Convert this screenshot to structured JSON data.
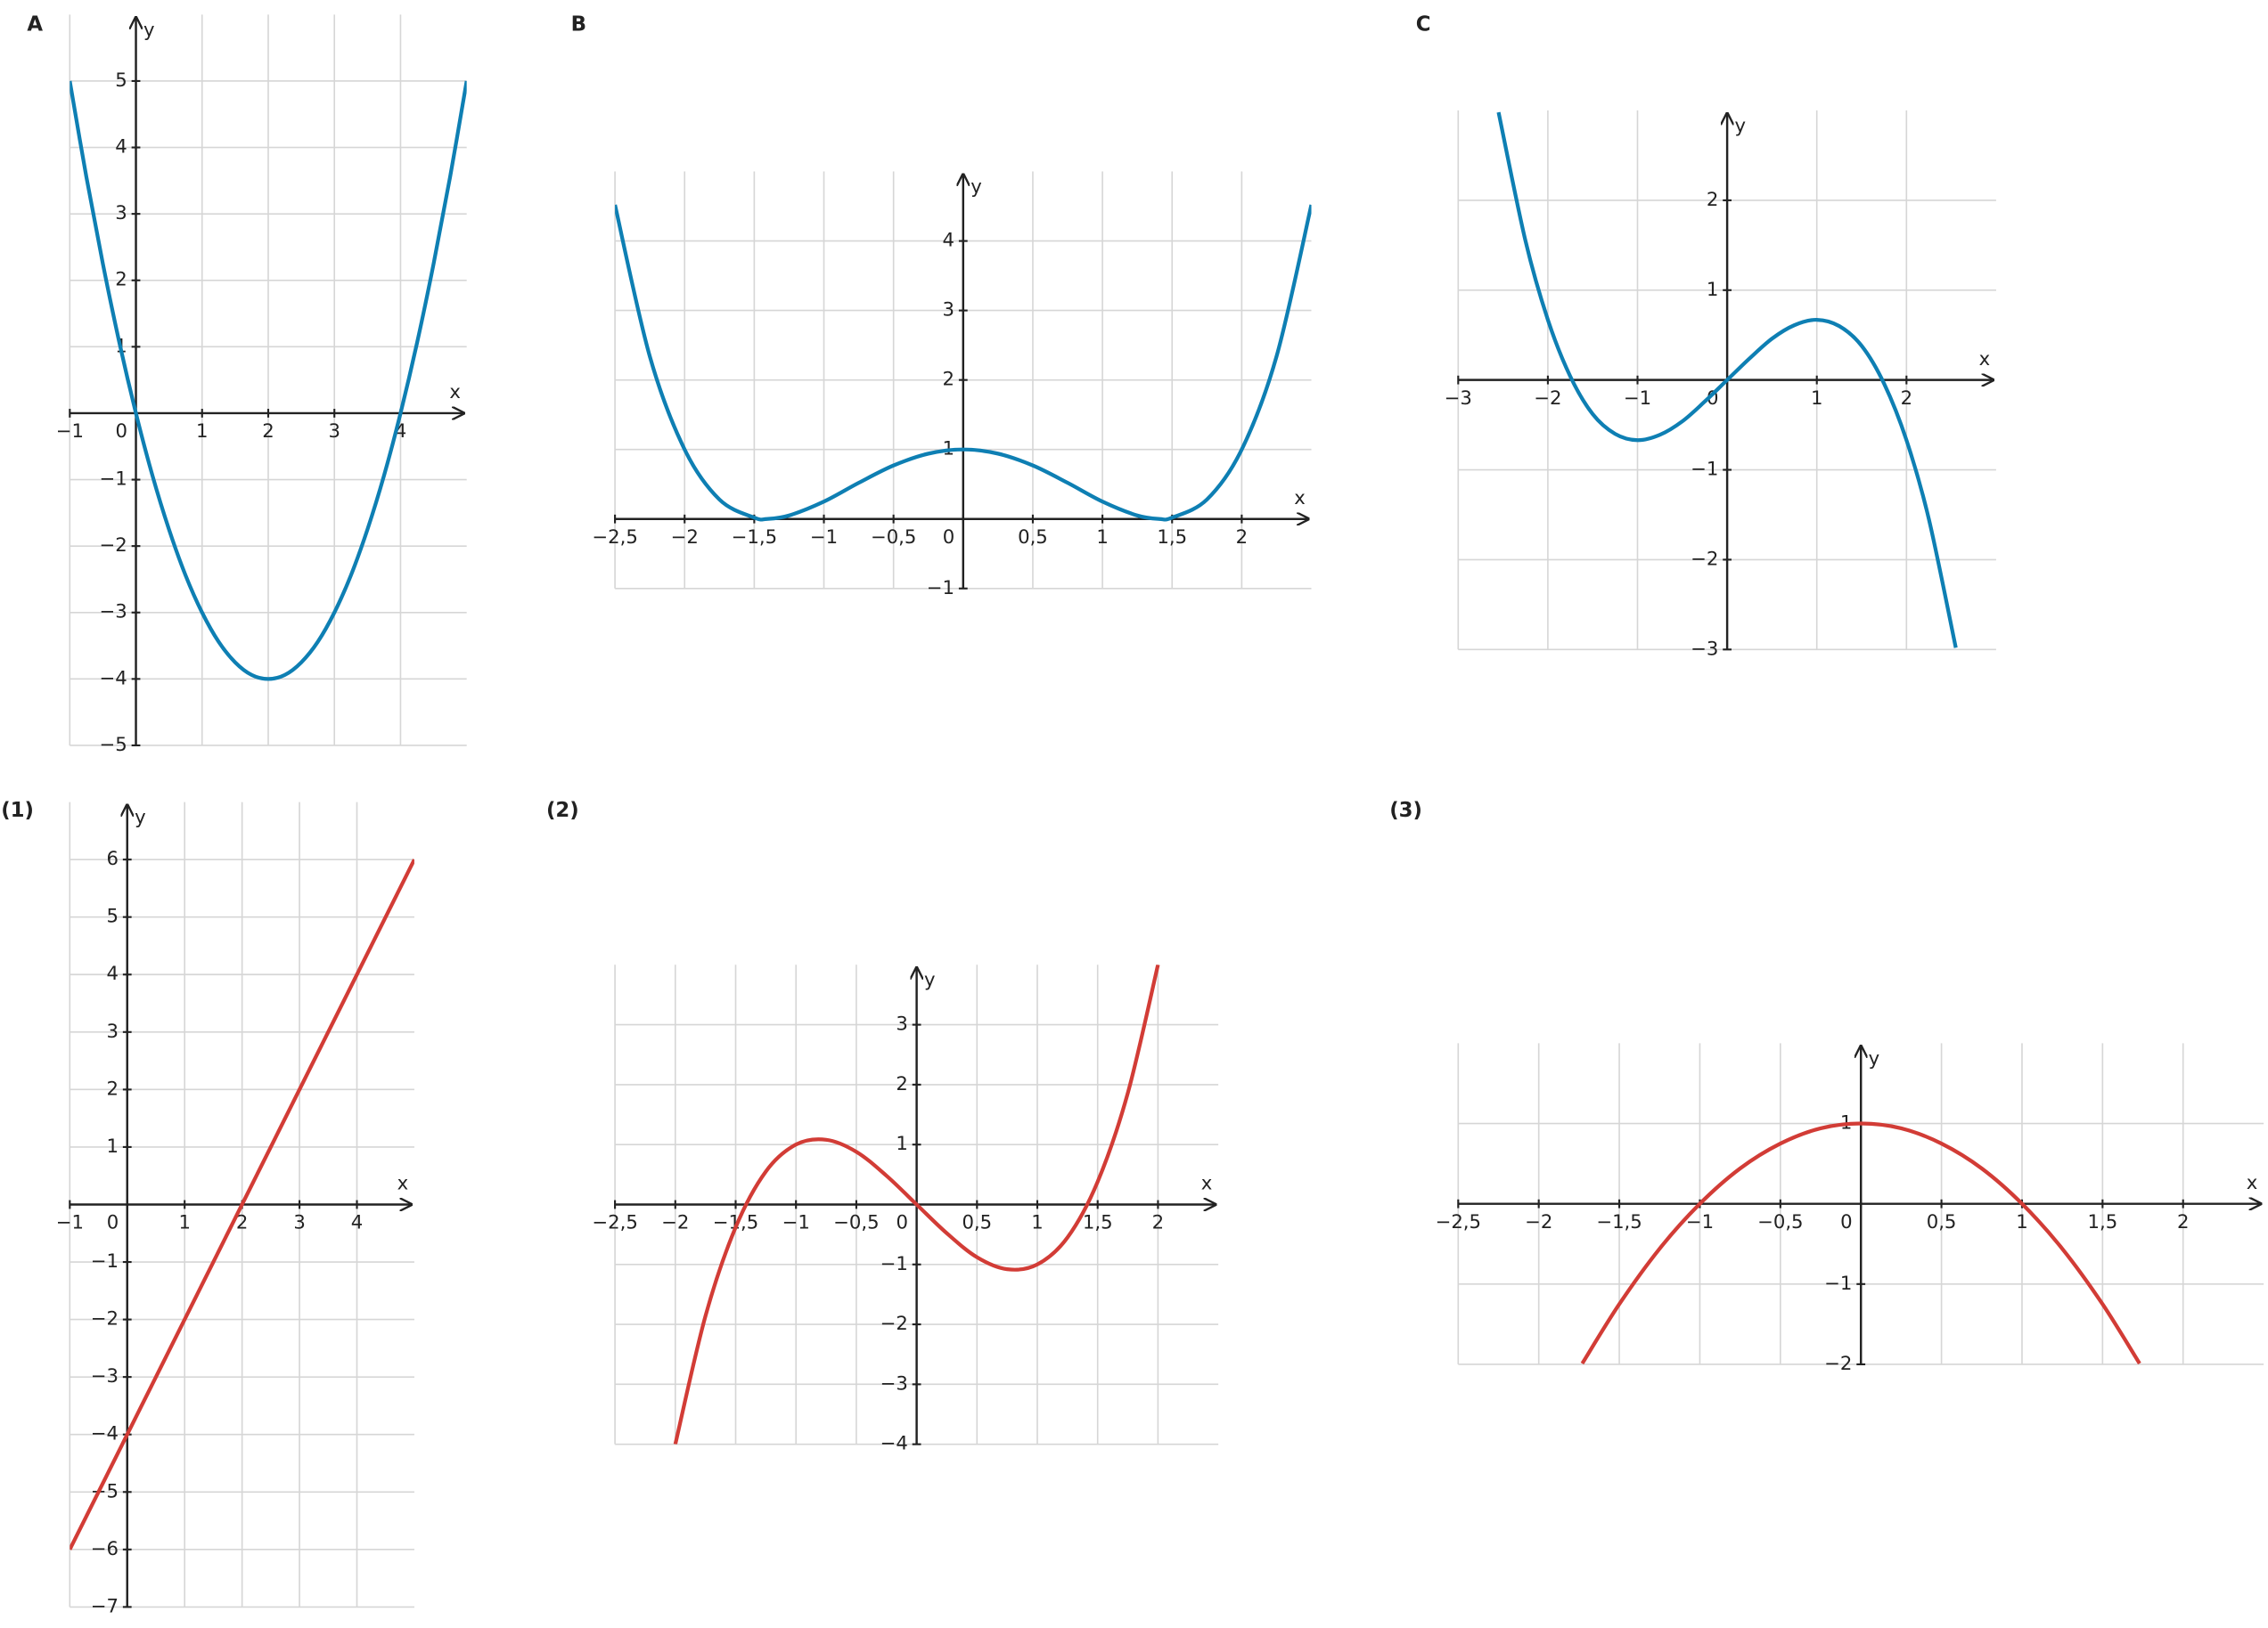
{
  "chart_data": [
    {
      "type": "line",
      "title": "A",
      "x_label": "x",
      "y_label": "y",
      "color": "#0e7fb3",
      "grid": true,
      "x": [
        -1,
        -0.75,
        -0.5,
        -0.25,
        0,
        0.25,
        0.5,
        0.75,
        1,
        1.25,
        1.5,
        1.75,
        2,
        2.25,
        2.5,
        2.75,
        3,
        3.25,
        3.5,
        3.75,
        4,
        4.25,
        4.5,
        4.75,
        5
      ],
      "values": [
        5,
        3.56,
        2.25,
        1.06,
        0,
        -0.94,
        -1.75,
        -2.44,
        -3,
        -3.44,
        -3.75,
        -3.94,
        -4,
        -3.94,
        -3.75,
        -3.44,
        -3,
        -2.44,
        -1.75,
        -0.94,
        0,
        1.06,
        2.25,
        3.56,
        5
      ],
      "xlim": [
        -1,
        5
      ],
      "ylim": [
        -5,
        6
      ],
      "xticks": [
        {
          "value": -1,
          "label": "−1"
        },
        0,
        1,
        2,
        3,
        4
      ],
      "yticks": [
        {
          "value": -5,
          "label": "−5"
        },
        {
          "value": -4,
          "label": "−4"
        },
        {
          "value": -3,
          "label": "−3"
        },
        {
          "value": -2,
          "label": "−2"
        },
        {
          "value": -1,
          "label": "−1"
        },
        1,
        2,
        3,
        4,
        5
      ]
    },
    {
      "type": "line",
      "title": "B",
      "x_label": "x",
      "y_label": "y",
      "color": "#0e7fb3",
      "grid": true,
      "x": [
        -2.5,
        -2.25,
        -2,
        -1.75,
        -1.5,
        -1.41,
        -1.25,
        -1,
        -0.75,
        -0.5,
        -0.25,
        0,
        0.25,
        0.5,
        0.75,
        1,
        1.25,
        1.41,
        1.5,
        1.75,
        2,
        2.25,
        2.5
      ],
      "values": [
        4.52,
        2.34,
        1,
        0.28,
        0.02,
        0,
        0.05,
        0.25,
        0.52,
        0.77,
        0.94,
        1,
        0.94,
        0.77,
        0.52,
        0.25,
        0.05,
        0,
        0.02,
        0.28,
        1,
        2.34,
        4.52
      ],
      "xlim": [
        -2.5,
        2.5
      ],
      "ylim": [
        -1,
        5
      ],
      "xticks": [
        {
          "value": -2.5,
          "label": "−2,5"
        },
        {
          "value": -2,
          "label": "−2"
        },
        {
          "value": -1.5,
          "label": "−1,5"
        },
        {
          "value": -1,
          "label": "−1"
        },
        {
          "value": -0.5,
          "label": "−0,5"
        },
        0,
        {
          "value": 0.5,
          "label": "0,5"
        },
        1,
        {
          "value": 1.5,
          "label": "1,5"
        },
        2
      ],
      "yticks": [
        {
          "value": -1,
          "label": "−1"
        },
        1,
        2,
        3,
        4
      ]
    },
    {
      "type": "line",
      "title": "C",
      "x_label": "x",
      "y_label": "y",
      "color": "#0e7fb3",
      "grid": true,
      "x": [
        -2.55,
        -2.25,
        -2,
        -1.75,
        -1.5,
        -1.25,
        -1,
        -0.75,
        -0.5,
        -0.25,
        0,
        0.25,
        0.5,
        0.75,
        1,
        1.25,
        1.5,
        1.75,
        2,
        2.25,
        2.55
      ],
      "values": [
        2.98,
        1.55,
        0.67,
        0.04,
        -0.38,
        -0.6,
        -0.67,
        -0.61,
        -0.46,
        -0.24,
        0,
        0.24,
        0.46,
        0.61,
        0.67,
        0.6,
        0.38,
        -0.04,
        -0.67,
        -1.55,
        -2.98
      ],
      "xlim": [
        -3,
        3
      ],
      "ylim": [
        -3,
        3
      ],
      "xticks": [
        {
          "value": -3,
          "label": "−3"
        },
        {
          "value": -2,
          "label": "−2"
        },
        {
          "value": -1,
          "label": "−1"
        },
        0,
        1,
        2
      ],
      "yticks": [
        {
          "value": -3,
          "label": "−3"
        },
        {
          "value": -2,
          "label": "−2"
        },
        {
          "value": -1,
          "label": "−1"
        },
        1,
        2
      ]
    },
    {
      "type": "line",
      "title": "(1)",
      "x_label": "x",
      "y_label": "y",
      "color": "#d23c36",
      "grid": true,
      "x": [
        -1,
        5
      ],
      "values": [
        -6,
        6
      ],
      "xlim": [
        -1,
        5
      ],
      "ylim": [
        -7,
        7
      ],
      "xticks": [
        {
          "value": -1,
          "label": "−1"
        },
        0,
        1,
        2,
        3,
        4
      ],
      "yticks": [
        {
          "value": -7,
          "label": "−7"
        },
        {
          "value": -6,
          "label": "−6"
        },
        {
          "value": -5,
          "label": "−5"
        },
        {
          "value": -4,
          "label": "−4"
        },
        {
          "value": -3,
          "label": "−3"
        },
        {
          "value": -2,
          "label": "−2"
        },
        {
          "value": -1,
          "label": "−1"
        },
        1,
        2,
        3,
        4,
        5,
        6
      ]
    },
    {
      "type": "line",
      "title": "(2)",
      "x_label": "x",
      "y_label": "y",
      "color": "#d23c36",
      "grid": true,
      "x": [
        -2,
        -1.75,
        -1.5,
        -1.25,
        -1,
        -0.75,
        -0.5,
        -0.25,
        0,
        0.25,
        0.5,
        0.75,
        1,
        1.25,
        1.5,
        1.75,
        2
      ],
      "values": [
        -4,
        -1.86,
        -0.38,
        0.55,
        1,
        1.08,
        0.88,
        0.48,
        0,
        -0.48,
        -0.88,
        -1.08,
        -1,
        -0.55,
        0.38,
        1.86,
        4
      ],
      "xlim": [
        -2.5,
        2.5
      ],
      "ylim": [
        -4,
        4
      ],
      "xticks": [
        {
          "value": -2.5,
          "label": "−2,5"
        },
        {
          "value": -2,
          "label": "−2"
        },
        {
          "value": -1.5,
          "label": "−1,5"
        },
        {
          "value": -1,
          "label": "−1"
        },
        {
          "value": -0.5,
          "label": "−0,5"
        },
        0,
        {
          "value": 0.5,
          "label": "0,5"
        },
        1,
        {
          "value": 1.5,
          "label": "1,5"
        },
        2
      ],
      "yticks": [
        {
          "value": -4,
          "label": "−4"
        },
        {
          "value": -3,
          "label": "−3"
        },
        {
          "value": -2,
          "label": "−2"
        },
        {
          "value": -1,
          "label": "−1"
        },
        1,
        2,
        3
      ]
    },
    {
      "type": "line",
      "title": "(3)",
      "x_label": "x",
      "y_label": "y",
      "color": "#d23c36",
      "grid": true,
      "x": [
        -1.73,
        -1.5,
        -1.25,
        -1,
        -0.75,
        -0.5,
        -0.25,
        0,
        0.25,
        0.5,
        0.75,
        1,
        1.25,
        1.5,
        1.73
      ],
      "values": [
        -1.99,
        -1.25,
        -0.56,
        0,
        0.44,
        0.75,
        0.94,
        1,
        0.94,
        0.75,
        0.44,
        0,
        -0.56,
        -1.25,
        -1.99
      ],
      "xlim": [
        -2.5,
        2.5
      ],
      "ylim": [
        -2,
        2
      ],
      "xticks": [
        {
          "value": -2.5,
          "label": "−2,5"
        },
        {
          "value": -2,
          "label": "−2"
        },
        {
          "value": -1.5,
          "label": "−1,5"
        },
        {
          "value": -1,
          "label": "−1"
        },
        {
          "value": -0.5,
          "label": "−0,5"
        },
        0,
        {
          "value": 0.5,
          "label": "0,5"
        },
        1,
        {
          "value": 1.5,
          "label": "1,5"
        },
        2
      ],
      "yticks": [
        {
          "value": -2,
          "label": "−2"
        },
        {
          "value": -1,
          "label": "−1"
        },
        1
      ]
    }
  ]
}
